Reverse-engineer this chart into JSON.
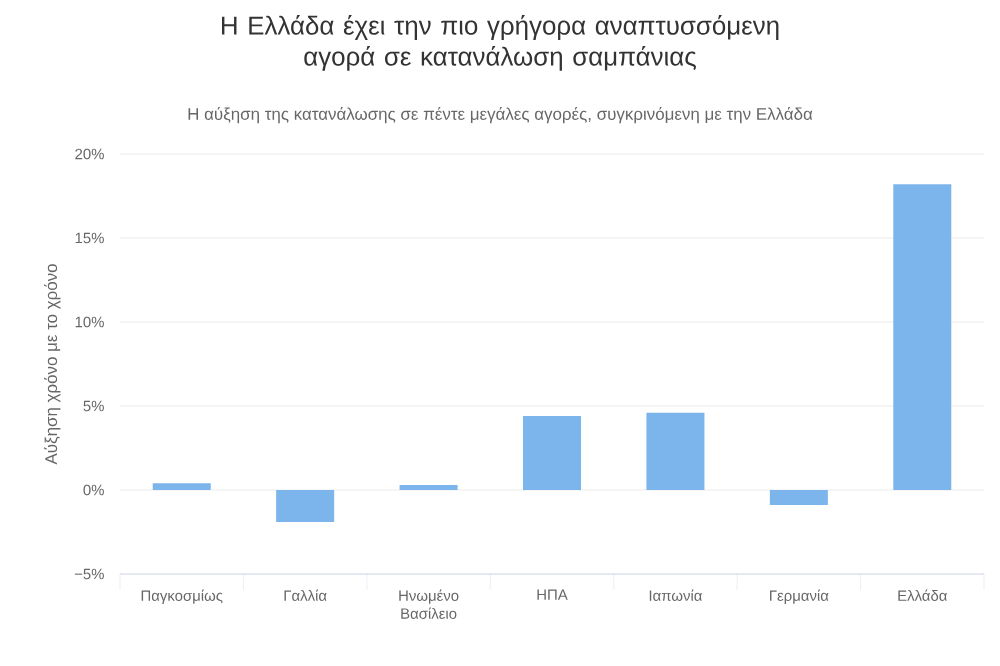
{
  "chart_data": {
    "type": "bar",
    "title": "Η Ελλάδα έχει την πιο γρήγορα αναπτυσσόμενη αγορά σε κατανάλωση σαμπάνιας",
    "subtitle": "Η αύξηση της κατανάλωσης σε πέντε μεγάλες αγορές, συγκρινόμενη με την Ελλάδα",
    "ylabel": "Αύξηση χρόνο με το χρόνο",
    "categories": [
      "Παγκοσμίως",
      "Γαλλία",
      "Ηνωμένο Βασίλειο",
      "ΗΠΑ",
      "Ιαπωνία",
      "Γερμανία",
      "Ελλάδα"
    ],
    "values": [
      0.4,
      -1.9,
      0.3,
      4.4,
      4.6,
      -0.9,
      18.2
    ],
    "color": "#7cb5ec",
    "ylim": [
      -5,
      20
    ],
    "yticks": [
      {
        "value": -5,
        "label": "−5%"
      },
      {
        "value": 0,
        "label": "0%"
      },
      {
        "value": 5,
        "label": "5%"
      },
      {
        "value": 10,
        "label": "10%"
      },
      {
        "value": 15,
        "label": "15%"
      },
      {
        "value": 20,
        "label": "20%"
      }
    ],
    "grid": "y"
  }
}
